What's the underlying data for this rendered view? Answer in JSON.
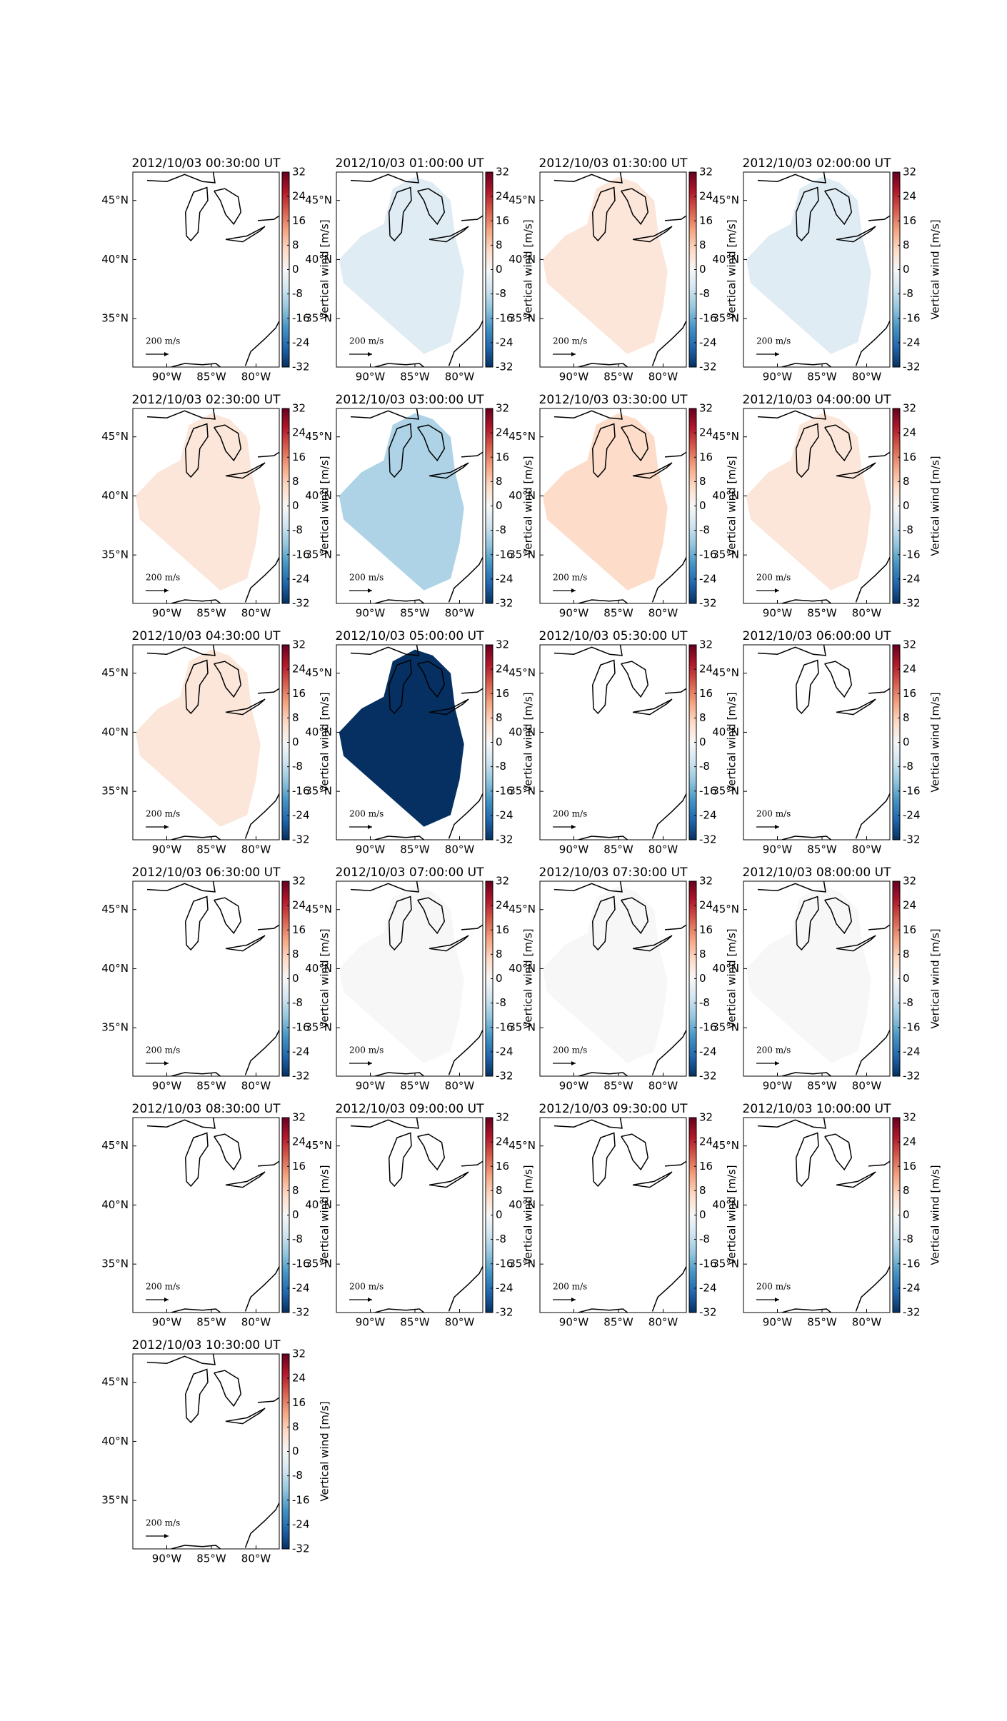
{
  "chart_data": [
    {
      "type": "map",
      "title": "2012/10/03 00:30:00 UT",
      "value": null,
      "xlim": [
        -93.8,
        -77.4
      ],
      "ylim": [
        30.9,
        47.4
      ],
      "xticks": [
        {
          "value": -90,
          "label": "90°W"
        },
        {
          "value": -85,
          "label": "85°W"
        },
        {
          "value": -80,
          "label": "80°W"
        }
      ],
      "yticks": [
        {
          "value": 35,
          "label": "35°N"
        },
        {
          "value": 40,
          "label": "40°N"
        },
        {
          "value": 45,
          "label": "45°N"
        }
      ],
      "clim": [
        -32,
        32
      ],
      "cticks": [
        -32,
        -24,
        -16,
        -8,
        0,
        8,
        16,
        24,
        32
      ],
      "colorbar_label": "Vertical wind [m/s]",
      "scale_label": "200 m/s"
    },
    {
      "type": "map",
      "title": "2012/10/03 01:00:00 UT",
      "value": -4,
      "xlim": [
        -93.8,
        -77.4
      ],
      "ylim": [
        30.9,
        47.4
      ],
      "xticks": [
        {
          "value": -90,
          "label": "90°W"
        },
        {
          "value": -85,
          "label": "85°W"
        },
        {
          "value": -80,
          "label": "80°W"
        }
      ],
      "yticks": [
        {
          "value": 35,
          "label": "35°N"
        },
        {
          "value": 40,
          "label": "40°N"
        },
        {
          "value": 45,
          "label": "45°N"
        }
      ],
      "clim": [
        -32,
        32
      ],
      "cticks": [
        -32,
        -24,
        -16,
        -8,
        0,
        8,
        16,
        24,
        32
      ],
      "colorbar_label": "Vertical wind [m/s]",
      "scale_label": "200 m/s"
    },
    {
      "type": "map",
      "title": "2012/10/03 01:30:00 UT",
      "value": 4,
      "xlim": [
        -93.8,
        -77.4
      ],
      "ylim": [
        30.9,
        47.4
      ],
      "xticks": [
        {
          "value": -90,
          "label": "90°W"
        },
        {
          "value": -85,
          "label": "85°W"
        },
        {
          "value": -80,
          "label": "80°W"
        }
      ],
      "yticks": [
        {
          "value": 35,
          "label": "35°N"
        },
        {
          "value": 40,
          "label": "40°N"
        },
        {
          "value": 45,
          "label": "45°N"
        }
      ],
      "clim": [
        -32,
        32
      ],
      "cticks": [
        -32,
        -24,
        -16,
        -8,
        0,
        8,
        16,
        24,
        32
      ],
      "colorbar_label": "Vertical wind [m/s]",
      "scale_label": "200 m/s"
    },
    {
      "type": "map",
      "title": "2012/10/03 02:00:00 UT",
      "value": -4,
      "xlim": [
        -93.8,
        -77.4
      ],
      "ylim": [
        30.9,
        47.4
      ],
      "xticks": [
        {
          "value": -90,
          "label": "90°W"
        },
        {
          "value": -85,
          "label": "85°W"
        },
        {
          "value": -80,
          "label": "80°W"
        }
      ],
      "yticks": [
        {
          "value": 35,
          "label": "35°N"
        },
        {
          "value": 40,
          "label": "40°N"
        },
        {
          "value": 45,
          "label": "45°N"
        }
      ],
      "clim": [
        -32,
        32
      ],
      "cticks": [
        -32,
        -24,
        -16,
        -8,
        0,
        8,
        16,
        24,
        32
      ],
      "colorbar_label": "Vertical wind [m/s]",
      "scale_label": "200 m/s"
    },
    {
      "type": "map",
      "title": "2012/10/03 02:30:00 UT",
      "value": 4,
      "xlim": [
        -93.8,
        -77.4
      ],
      "ylim": [
        30.9,
        47.4
      ],
      "xticks": [
        {
          "value": -90,
          "label": "90°W"
        },
        {
          "value": -85,
          "label": "85°W"
        },
        {
          "value": -80,
          "label": "80°W"
        }
      ],
      "yticks": [
        {
          "value": 35,
          "label": "35°N"
        },
        {
          "value": 40,
          "label": "40°N"
        },
        {
          "value": 45,
          "label": "45°N"
        }
      ],
      "clim": [
        -32,
        32
      ],
      "cticks": [
        -32,
        -24,
        -16,
        -8,
        0,
        8,
        16,
        24,
        32
      ],
      "colorbar_label": "Vertical wind [m/s]",
      "scale_label": "200 m/s"
    },
    {
      "type": "map",
      "title": "2012/10/03 03:00:00 UT",
      "value": -10,
      "xlim": [
        -93.8,
        -77.4
      ],
      "ylim": [
        30.9,
        47.4
      ],
      "xticks": [
        {
          "value": -90,
          "label": "90°W"
        },
        {
          "value": -85,
          "label": "85°W"
        },
        {
          "value": -80,
          "label": "80°W"
        }
      ],
      "yticks": [
        {
          "value": 35,
          "label": "35°N"
        },
        {
          "value": 40,
          "label": "40°N"
        },
        {
          "value": 45,
          "label": "45°N"
        }
      ],
      "clim": [
        -32,
        32
      ],
      "cticks": [
        -32,
        -24,
        -16,
        -8,
        0,
        8,
        16,
        24,
        32
      ],
      "colorbar_label": "Vertical wind [m/s]",
      "scale_label": "200 m/s"
    },
    {
      "type": "map",
      "title": "2012/10/03 03:30:00 UT",
      "value": 6,
      "xlim": [
        -93.8,
        -77.4
      ],
      "ylim": [
        30.9,
        47.4
      ],
      "xticks": [
        {
          "value": -90,
          "label": "90°W"
        },
        {
          "value": -85,
          "label": "85°W"
        },
        {
          "value": -80,
          "label": "80°W"
        }
      ],
      "yticks": [
        {
          "value": 35,
          "label": "35°N"
        },
        {
          "value": 40,
          "label": "40°N"
        },
        {
          "value": 45,
          "label": "45°N"
        }
      ],
      "clim": [
        -32,
        32
      ],
      "cticks": [
        -32,
        -24,
        -16,
        -8,
        0,
        8,
        16,
        24,
        32
      ],
      "colorbar_label": "Vertical wind [m/s]",
      "scale_label": "200 m/s"
    },
    {
      "type": "map",
      "title": "2012/10/03 04:00:00 UT",
      "value": 4,
      "xlim": [
        -93.8,
        -77.4
      ],
      "ylim": [
        30.9,
        47.4
      ],
      "xticks": [
        {
          "value": -90,
          "label": "90°W"
        },
        {
          "value": -85,
          "label": "85°W"
        },
        {
          "value": -80,
          "label": "80°W"
        }
      ],
      "yticks": [
        {
          "value": 35,
          "label": "35°N"
        },
        {
          "value": 40,
          "label": "40°N"
        },
        {
          "value": 45,
          "label": "45°N"
        }
      ],
      "clim": [
        -32,
        32
      ],
      "cticks": [
        -32,
        -24,
        -16,
        -8,
        0,
        8,
        16,
        24,
        32
      ],
      "colorbar_label": "Vertical wind [m/s]",
      "scale_label": "200 m/s"
    },
    {
      "type": "map",
      "title": "2012/10/03 04:30:00 UT",
      "value": 4,
      "xlim": [
        -93.8,
        -77.4
      ],
      "ylim": [
        30.9,
        47.4
      ],
      "xticks": [
        {
          "value": -90,
          "label": "90°W"
        },
        {
          "value": -85,
          "label": "85°W"
        },
        {
          "value": -80,
          "label": "80°W"
        }
      ],
      "yticks": [
        {
          "value": 35,
          "label": "35°N"
        },
        {
          "value": 40,
          "label": "40°N"
        },
        {
          "value": 45,
          "label": "45°N"
        }
      ],
      "clim": [
        -32,
        32
      ],
      "cticks": [
        -32,
        -24,
        -16,
        -8,
        0,
        8,
        16,
        24,
        32
      ],
      "colorbar_label": "Vertical wind [m/s]",
      "scale_label": "200 m/s"
    },
    {
      "type": "map",
      "title": "2012/10/03 05:00:00 UT",
      "value": -32,
      "xlim": [
        -93.8,
        -77.4
      ],
      "ylim": [
        30.9,
        47.4
      ],
      "xticks": [
        {
          "value": -90,
          "label": "90°W"
        },
        {
          "value": -85,
          "label": "85°W"
        },
        {
          "value": -80,
          "label": "80°W"
        }
      ],
      "yticks": [
        {
          "value": 35,
          "label": "35°N"
        },
        {
          "value": 40,
          "label": "40°N"
        },
        {
          "value": 45,
          "label": "45°N"
        }
      ],
      "clim": [
        -32,
        32
      ],
      "cticks": [
        -32,
        -24,
        -16,
        -8,
        0,
        8,
        16,
        24,
        32
      ],
      "colorbar_label": "Vertical wind [m/s]",
      "scale_label": "200 m/s"
    },
    {
      "type": "map",
      "title": "2012/10/03 05:30:00 UT",
      "value": null,
      "xlim": [
        -93.8,
        -77.4
      ],
      "ylim": [
        30.9,
        47.4
      ],
      "xticks": [
        {
          "value": -90,
          "label": "90°W"
        },
        {
          "value": -85,
          "label": "85°W"
        },
        {
          "value": -80,
          "label": "80°W"
        }
      ],
      "yticks": [
        {
          "value": 35,
          "label": "35°N"
        },
        {
          "value": 40,
          "label": "40°N"
        },
        {
          "value": 45,
          "label": "45°N"
        }
      ],
      "clim": [
        -32,
        32
      ],
      "cticks": [
        -32,
        -24,
        -16,
        -8,
        0,
        8,
        16,
        24,
        32
      ],
      "colorbar_label": "Vertical wind [m/s]",
      "scale_label": "200 m/s"
    },
    {
      "type": "map",
      "title": "2012/10/03 06:00:00 UT",
      "value": null,
      "xlim": [
        -93.8,
        -77.4
      ],
      "ylim": [
        30.9,
        47.4
      ],
      "xticks": [
        {
          "value": -90,
          "label": "90°W"
        },
        {
          "value": -85,
          "label": "85°W"
        },
        {
          "value": -80,
          "label": "80°W"
        }
      ],
      "yticks": [
        {
          "value": 35,
          "label": "35°N"
        },
        {
          "value": 40,
          "label": "40°N"
        },
        {
          "value": 45,
          "label": "45°N"
        }
      ],
      "clim": [
        -32,
        32
      ],
      "cticks": [
        -32,
        -24,
        -16,
        -8,
        0,
        8,
        16,
        24,
        32
      ],
      "colorbar_label": "Vertical wind [m/s]",
      "scale_label": "200 m/s"
    },
    {
      "type": "map",
      "title": "2012/10/03 06:30:00 UT",
      "value": null,
      "xlim": [
        -93.8,
        -77.4
      ],
      "ylim": [
        30.9,
        47.4
      ],
      "xticks": [
        {
          "value": -90,
          "label": "90°W"
        },
        {
          "value": -85,
          "label": "85°W"
        },
        {
          "value": -80,
          "label": "80°W"
        }
      ],
      "yticks": [
        {
          "value": 35,
          "label": "35°N"
        },
        {
          "value": 40,
          "label": "40°N"
        },
        {
          "value": 45,
          "label": "45°N"
        }
      ],
      "clim": [
        -32,
        32
      ],
      "cticks": [
        -32,
        -24,
        -16,
        -8,
        0,
        8,
        16,
        24,
        32
      ],
      "colorbar_label": "Vertical wind [m/s]",
      "scale_label": "200 m/s"
    },
    {
      "type": "map",
      "title": "2012/10/03 07:00:00 UT",
      "value": 0,
      "xlim": [
        -93.8,
        -77.4
      ],
      "ylim": [
        30.9,
        47.4
      ],
      "xticks": [
        {
          "value": -90,
          "label": "90°W"
        },
        {
          "value": -85,
          "label": "85°W"
        },
        {
          "value": -80,
          "label": "80°W"
        }
      ],
      "yticks": [
        {
          "value": 35,
          "label": "35°N"
        },
        {
          "value": 40,
          "label": "40°N"
        },
        {
          "value": 45,
          "label": "45°N"
        }
      ],
      "clim": [
        -32,
        32
      ],
      "cticks": [
        -32,
        -24,
        -16,
        -8,
        0,
        8,
        16,
        24,
        32
      ],
      "colorbar_label": "Vertical wind [m/s]",
      "scale_label": "200 m/s"
    },
    {
      "type": "map",
      "title": "2012/10/03 07:30:00 UT",
      "value": 0,
      "xlim": [
        -93.8,
        -77.4
      ],
      "ylim": [
        30.9,
        47.4
      ],
      "xticks": [
        {
          "value": -90,
          "label": "90°W"
        },
        {
          "value": -85,
          "label": "85°W"
        },
        {
          "value": -80,
          "label": "80°W"
        }
      ],
      "yticks": [
        {
          "value": 35,
          "label": "35°N"
        },
        {
          "value": 40,
          "label": "40°N"
        },
        {
          "value": 45,
          "label": "45°N"
        }
      ],
      "clim": [
        -32,
        32
      ],
      "cticks": [
        -32,
        -24,
        -16,
        -8,
        0,
        8,
        16,
        24,
        32
      ],
      "colorbar_label": "Vertical wind [m/s]",
      "scale_label": "200 m/s"
    },
    {
      "type": "map",
      "title": "2012/10/03 08:00:00 UT",
      "value": 0,
      "xlim": [
        -93.8,
        -77.4
      ],
      "ylim": [
        30.9,
        47.4
      ],
      "xticks": [
        {
          "value": -90,
          "label": "90°W"
        },
        {
          "value": -85,
          "label": "85°W"
        },
        {
          "value": -80,
          "label": "80°W"
        }
      ],
      "yticks": [
        {
          "value": 35,
          "label": "35°N"
        },
        {
          "value": 40,
          "label": "40°N"
        },
        {
          "value": 45,
          "label": "45°N"
        }
      ],
      "clim": [
        -32,
        32
      ],
      "cticks": [
        -32,
        -24,
        -16,
        -8,
        0,
        8,
        16,
        24,
        32
      ],
      "colorbar_label": "Vertical wind [m/s]",
      "scale_label": "200 m/s"
    },
    {
      "type": "map",
      "title": "2012/10/03 08:30:00 UT",
      "value": null,
      "xlim": [
        -93.8,
        -77.4
      ],
      "ylim": [
        30.9,
        47.4
      ],
      "xticks": [
        {
          "value": -90,
          "label": "90°W"
        },
        {
          "value": -85,
          "label": "85°W"
        },
        {
          "value": -80,
          "label": "80°W"
        }
      ],
      "yticks": [
        {
          "value": 35,
          "label": "35°N"
        },
        {
          "value": 40,
          "label": "40°N"
        },
        {
          "value": 45,
          "label": "45°N"
        }
      ],
      "clim": [
        -32,
        32
      ],
      "cticks": [
        -32,
        -24,
        -16,
        -8,
        0,
        8,
        16,
        24,
        32
      ],
      "colorbar_label": "Vertical wind [m/s]",
      "scale_label": "200 m/s"
    },
    {
      "type": "map",
      "title": "2012/10/03 09:00:00 UT",
      "value": null,
      "xlim": [
        -93.8,
        -77.4
      ],
      "ylim": [
        30.9,
        47.4
      ],
      "xticks": [
        {
          "value": -90,
          "label": "90°W"
        },
        {
          "value": -85,
          "label": "85°W"
        },
        {
          "value": -80,
          "label": "80°W"
        }
      ],
      "yticks": [
        {
          "value": 35,
          "label": "35°N"
        },
        {
          "value": 40,
          "label": "40°N"
        },
        {
          "value": 45,
          "label": "45°N"
        }
      ],
      "clim": [
        -32,
        32
      ],
      "cticks": [
        -32,
        -24,
        -16,
        -8,
        0,
        8,
        16,
        24,
        32
      ],
      "colorbar_label": "Vertical wind [m/s]",
      "scale_label": "200 m/s"
    },
    {
      "type": "map",
      "title": "2012/10/03 09:30:00 UT",
      "value": null,
      "xlim": [
        -93.8,
        -77.4
      ],
      "ylim": [
        30.9,
        47.4
      ],
      "xticks": [
        {
          "value": -90,
          "label": "90°W"
        },
        {
          "value": -85,
          "label": "85°W"
        },
        {
          "value": -80,
          "label": "80°W"
        }
      ],
      "yticks": [
        {
          "value": 35,
          "label": "35°N"
        },
        {
          "value": 40,
          "label": "40°N"
        },
        {
          "value": 45,
          "label": "45°N"
        }
      ],
      "clim": [
        -32,
        32
      ],
      "cticks": [
        -32,
        -24,
        -16,
        -8,
        0,
        8,
        16,
        24,
        32
      ],
      "colorbar_label": "Vertical wind [m/s]",
      "scale_label": "200 m/s"
    },
    {
      "type": "map",
      "title": "2012/10/03 10:00:00 UT",
      "value": null,
      "xlim": [
        -93.8,
        -77.4
      ],
      "ylim": [
        30.9,
        47.4
      ],
      "xticks": [
        {
          "value": -90,
          "label": "90°W"
        },
        {
          "value": -85,
          "label": "85°W"
        },
        {
          "value": -80,
          "label": "80°W"
        }
      ],
      "yticks": [
        {
          "value": 35,
          "label": "35°N"
        },
        {
          "value": 40,
          "label": "40°N"
        },
        {
          "value": 45,
          "label": "45°N"
        }
      ],
      "clim": [
        -32,
        32
      ],
      "cticks": [
        -32,
        -24,
        -16,
        -8,
        0,
        8,
        16,
        24,
        32
      ],
      "colorbar_label": "Vertical wind [m/s]",
      "scale_label": "200 m/s"
    },
    {
      "type": "map",
      "title": "2012/10/03 10:30:00 UT",
      "value": null,
      "xlim": [
        -93.8,
        -77.4
      ],
      "ylim": [
        30.9,
        47.4
      ],
      "xticks": [
        {
          "value": -90,
          "label": "90°W"
        },
        {
          "value": -85,
          "label": "85°W"
        },
        {
          "value": -80,
          "label": "80°W"
        }
      ],
      "yticks": [
        {
          "value": 35,
          "label": "35°N"
        },
        {
          "value": 40,
          "label": "40°N"
        },
        {
          "value": 45,
          "label": "45°N"
        }
      ],
      "clim": [
        -32,
        32
      ],
      "cticks": [
        -32,
        -24,
        -16,
        -8,
        0,
        8,
        16,
        24,
        32
      ],
      "colorbar_label": "Vertical wind [m/s]",
      "scale_label": "200 m/s"
    }
  ]
}
